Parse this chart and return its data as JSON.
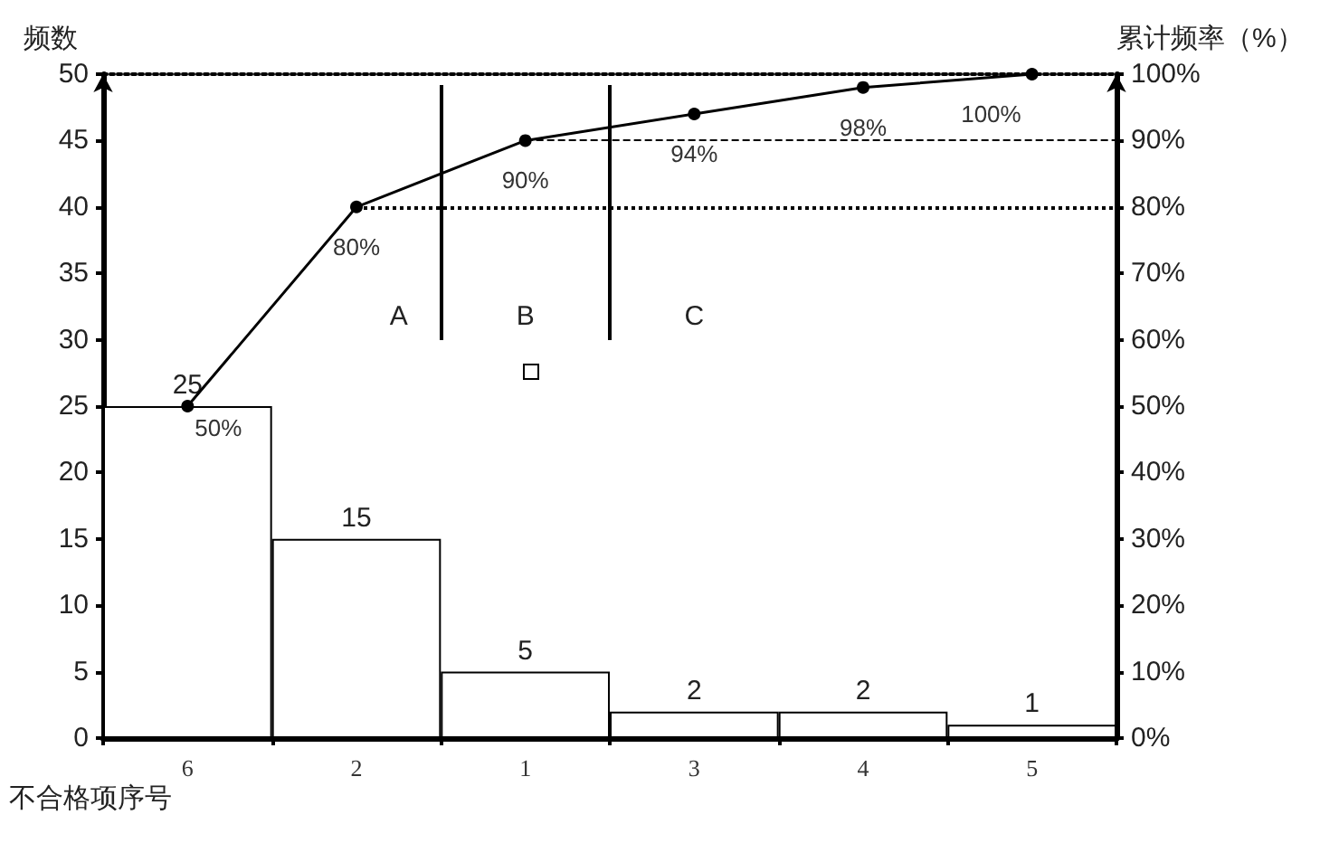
{
  "chart_data": {
    "type": "bar",
    "xlabel": "不合格项序号",
    "ylabel": "频数",
    "y2label": "累计频率（%）",
    "categories": [
      "6",
      "2",
      "1",
      "3",
      "4",
      "5"
    ],
    "series": [
      {
        "color": "#ffffff",
        "values": [
          25,
          15,
          5,
          2,
          2,
          1
        ]
      },
      {
        "type": "line",
        "axis": "y2",
        "color": "#000000",
        "values": [
          50,
          80,
          90,
          94,
          98,
          100
        ],
        "value_labels": [
          "50%",
          "80%",
          "90%",
          "94%",
          "98%",
          "100%"
        ]
      }
    ],
    "data_labels": true,
    "marker": "circle",
    "ylim": [
      0,
      50
    ],
    "yticks": [
      0,
      5,
      10,
      15,
      20,
      25,
      30,
      35,
      40,
      45,
      50
    ],
    "y2lim": [
      0,
      100
    ],
    "y2ticks": [
      {
        "value": 0,
        "label": "0%"
      },
      {
        "value": 10,
        "label": "10%"
      },
      {
        "value": 20,
        "label": "20%"
      },
      {
        "value": 30,
        "label": "30%"
      },
      {
        "value": 40,
        "label": "40%"
      },
      {
        "value": 50,
        "label": "50%"
      },
      {
        "value": 60,
        "label": "60%"
      },
      {
        "value": 70,
        "label": "70%"
      },
      {
        "value": 80,
        "label": "80%"
      },
      {
        "value": 90,
        "label": "90%"
      },
      {
        "value": 100,
        "label": "100%"
      }
    ],
    "ref_lines": [
      {
        "axis": "y2",
        "value": 90,
        "line_style": "dashed",
        "color": "#000000"
      },
      {
        "axis": "y2",
        "value": 80,
        "line_style": "dotted",
        "color": "#000000"
      }
    ],
    "annotations": [
      "A",
      "B",
      "C"
    ]
  }
}
